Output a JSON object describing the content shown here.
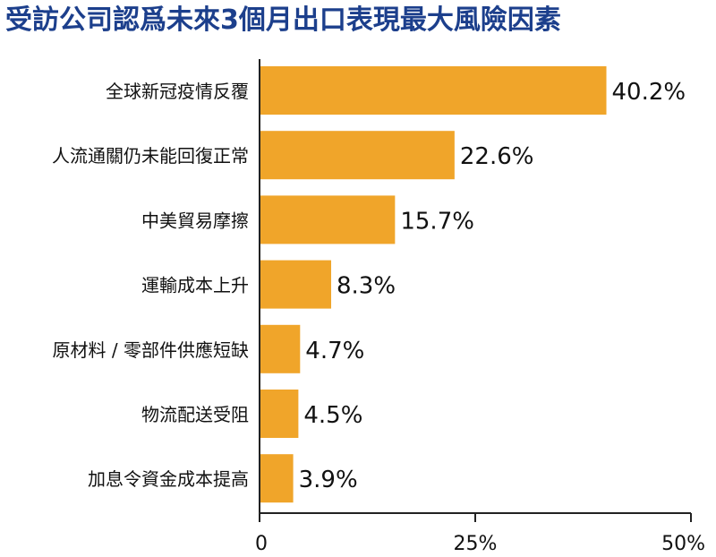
{
  "title": "受訪公司認爲未來3個月出口表現最大風險因素",
  "colors": {
    "title": "#1c3f8c",
    "bar": "#f0a52a",
    "axis": "#222222",
    "text": "#111111"
  },
  "chart_data": {
    "type": "bar",
    "orientation": "horizontal",
    "categories": [
      "全球新冠疫情反覆",
      "人流通關仍未能回復正常",
      "中美貿易摩擦",
      "運輸成本上升",
      "原材料 / 零部件供應短缺",
      "物流配送受阻",
      "加息令資金成本提高"
    ],
    "values": [
      40.2,
      22.6,
      15.7,
      8.3,
      4.7,
      4.5,
      3.9
    ],
    "value_labels": [
      "40.2%",
      "22.6%",
      "15.7%",
      "8.3%",
      "4.7%",
      "4.5%",
      "3.9%"
    ],
    "xlim": [
      0,
      50
    ],
    "ticks": [
      0,
      25,
      50
    ],
    "tick_labels": [
      "0",
      "25%",
      "50%"
    ],
    "grid": false,
    "legend": "none"
  }
}
